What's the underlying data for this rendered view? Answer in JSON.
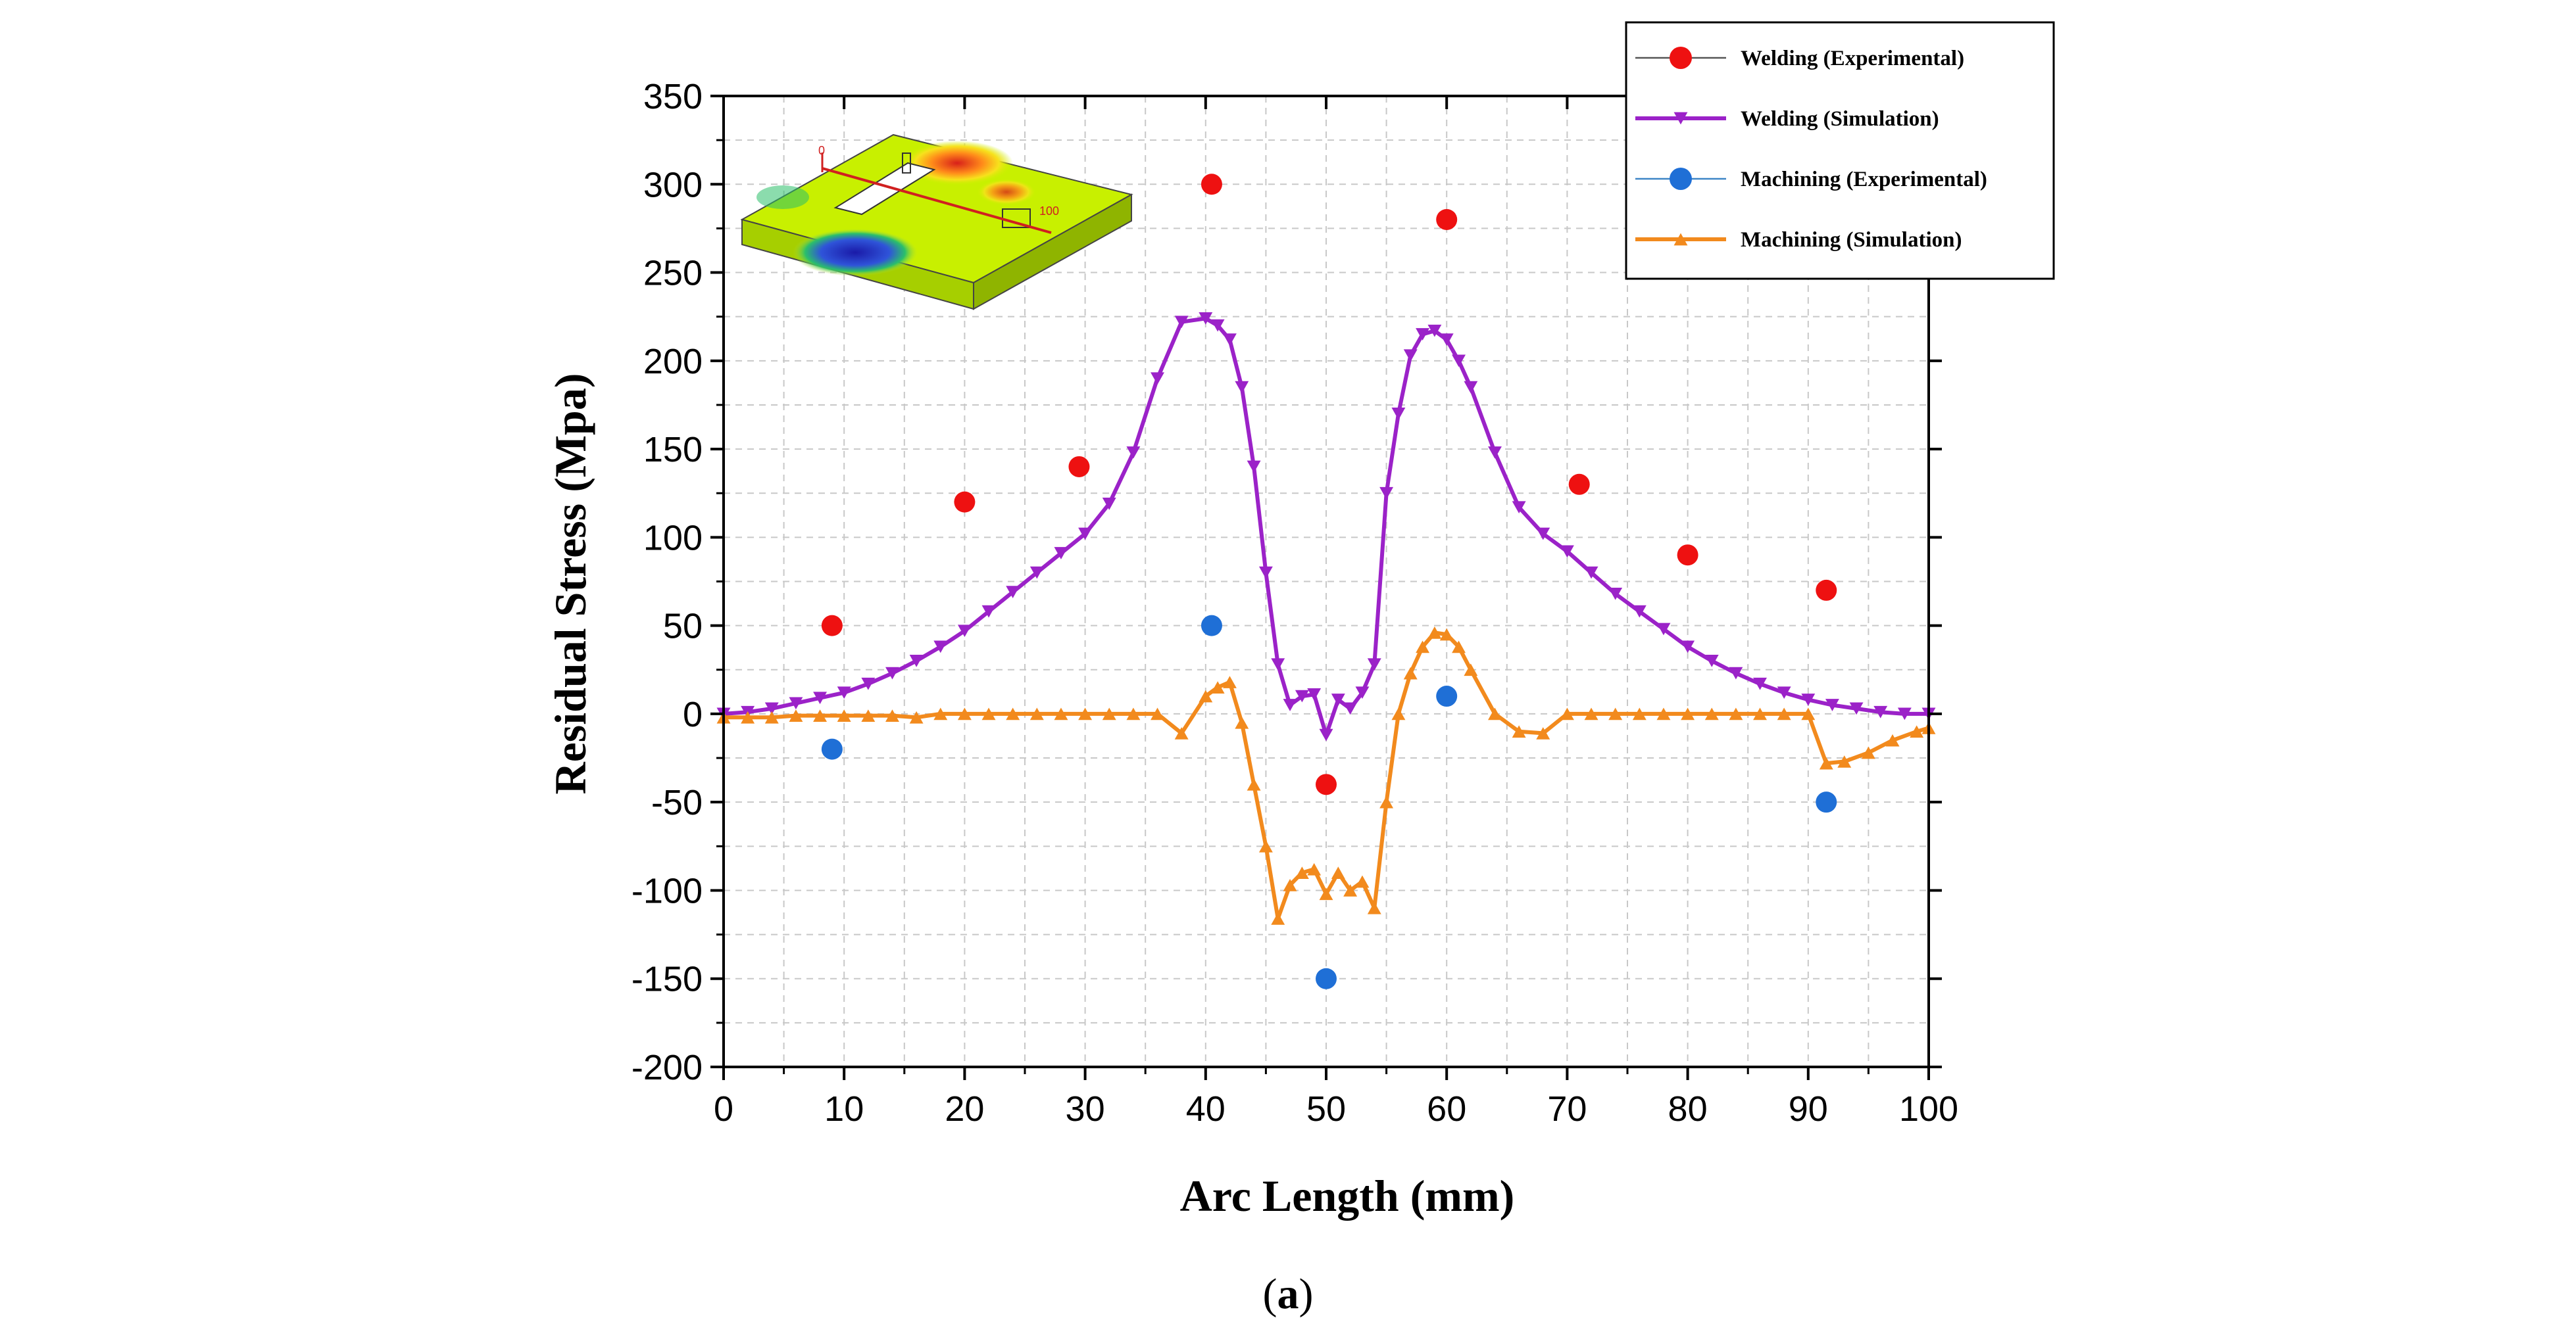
{
  "chart_data": {
    "type": "line",
    "xlabel": "Arc Length (mm)",
    "ylabel": "Residual Stress (Mpa)",
    "xlim": [
      0,
      100
    ],
    "ylim": [
      -200,
      350
    ],
    "xticks": [
      0,
      10,
      20,
      30,
      40,
      50,
      60,
      70,
      80,
      90,
      100
    ],
    "yticks": [
      -200,
      -150,
      -100,
      -50,
      0,
      50,
      100,
      150,
      200,
      250,
      300,
      350
    ],
    "grid": true,
    "legend_position": "top-right",
    "caption": {
      "open": "(",
      "letter": "a",
      "close": ")"
    },
    "inset": {
      "label_start": "0",
      "label_end": "100"
    },
    "series": [
      {
        "name": "Welding (Experimental)",
        "kind": "scatter",
        "color": "#ee1111",
        "marker": "circle",
        "x": [
          9,
          20,
          29.5,
          40.5,
          50,
          60,
          71,
          80,
          91.5
        ],
        "y": [
          50,
          120,
          140,
          300,
          -40,
          280,
          130,
          90,
          70
        ]
      },
      {
        "name": "Welding (Simulation)",
        "kind": "line",
        "color": "#9b22c8",
        "marker": "triangle-down",
        "x": [
          0,
          2,
          4,
          6,
          8,
          10,
          12,
          14,
          16,
          18,
          20,
          22,
          24,
          26,
          28,
          30,
          32,
          34,
          36,
          38,
          40,
          41,
          42,
          43,
          44,
          45,
          46,
          47,
          48,
          49,
          50,
          51,
          52,
          53,
          54,
          55,
          56,
          57,
          58,
          59,
          60,
          61,
          62,
          64,
          66,
          68,
          70,
          72,
          74,
          76,
          78,
          80,
          82,
          84,
          86,
          88,
          90,
          92,
          94,
          96,
          98,
          100
        ],
        "y": [
          0,
          1,
          3,
          6,
          9,
          12,
          17,
          23,
          30,
          38,
          47,
          58,
          69,
          80,
          91,
          102,
          119,
          148,
          190,
          222,
          224,
          220,
          212,
          185,
          140,
          80,
          28,
          5,
          10,
          11,
          -12,
          8,
          3,
          12,
          28,
          125,
          170,
          203,
          215,
          217,
          212,
          200,
          185,
          148,
          117,
          102,
          92,
          80,
          68,
          58,
          48,
          38,
          30,
          23,
          17,
          12,
          8,
          5,
          3,
          1,
          0,
          0
        ]
      },
      {
        "name": "Machining (Experimental)",
        "kind": "scatter",
        "color": "#1f6fd6",
        "marker": "circle",
        "x": [
          9,
          40.5,
          50,
          60,
          91.5
        ],
        "y": [
          -20,
          50,
          -150,
          10,
          -50
        ]
      },
      {
        "name": "Machining (Simulation)",
        "kind": "line",
        "color": "#f28a1d",
        "marker": "triangle-up",
        "x": [
          0,
          2,
          4,
          6,
          8,
          10,
          12,
          14,
          16,
          18,
          20,
          22,
          24,
          26,
          28,
          30,
          32,
          34,
          36,
          38,
          40,
          41,
          42,
          43,
          44,
          45,
          46,
          47,
          48,
          49,
          50,
          51,
          52,
          53,
          54,
          55,
          56,
          57,
          58,
          59,
          60,
          61,
          62,
          64,
          66,
          68,
          70,
          72,
          74,
          76,
          78,
          80,
          82,
          84,
          86,
          88,
          90,
          91.5,
          93,
          95,
          97,
          99,
          100
        ],
        "y": [
          -2,
          -2,
          -2,
          -1,
          -1,
          -1,
          -1,
          -1,
          -2,
          0,
          0,
          0,
          0,
          0,
          0,
          0,
          0,
          0,
          0,
          -11,
          10,
          15,
          18,
          -5,
          -40,
          -75,
          -116,
          -97,
          -90,
          -88,
          -102,
          -90,
          -100,
          -95,
          -110,
          -50,
          0,
          23,
          38,
          46,
          45,
          38,
          25,
          0,
          -10,
          -11,
          0,
          0,
          0,
          0,
          0,
          0,
          0,
          0,
          0,
          0,
          0,
          -28,
          -27,
          -22,
          -15,
          -10,
          -8
        ]
      }
    ]
  }
}
